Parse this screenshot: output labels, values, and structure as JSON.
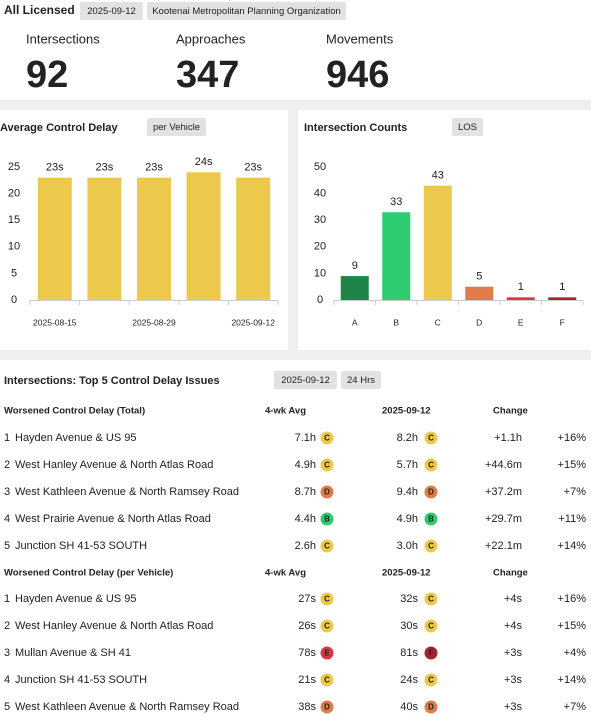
{
  "header": {
    "title": "All Licensed",
    "date": "2025-09-12",
    "org": "Kootenai Metropolitan Planning Organization"
  },
  "stats": [
    {
      "label": "Intersections",
      "value": 92
    },
    {
      "label": "Approaches",
      "value": 347
    },
    {
      "label": "Movements",
      "value": 946
    }
  ],
  "chart_data": [
    {
      "type": "bar",
      "title": "Average Control Delay",
      "badge": "per Vehicle",
      "categories": [
        "2025-08-15",
        null,
        "2025-08-29",
        null,
        "2025-09-12"
      ],
      "values": [
        23,
        23,
        23,
        24,
        23
      ],
      "value_labels": [
        "23s",
        "23s",
        "23s",
        "24s",
        "23s"
      ],
      "color": "#ecc94b",
      "ylim": [
        0,
        25
      ],
      "yticks": [
        0,
        5,
        10,
        15,
        20,
        25
      ]
    },
    {
      "type": "bar",
      "title": "Intersection Counts",
      "badge": "LOS",
      "categories": [
        "A",
        "B",
        "C",
        "D",
        "E",
        "F"
      ],
      "values": [
        9,
        33,
        43,
        5,
        1,
        1
      ],
      "colors": [
        "#1e8449",
        "#2ecc71",
        "#ecc94b",
        "#e07b4a",
        "#dc3545",
        "#a4262c"
      ],
      "ylim": [
        0,
        50
      ],
      "yticks": [
        0,
        10,
        20,
        30,
        40,
        50
      ]
    }
  ],
  "issues": {
    "title": "Intersections: Top 5 Control Delay Issues",
    "date": "2025-09-12",
    "period": "24 Hrs",
    "tables": [
      {
        "header": [
          "Worsened Control Delay (Total)",
          "4-wk Avg",
          "2025-09-12",
          "Change"
        ],
        "rows": [
          {
            "rank": 1,
            "name": "Hayden Avenue & US 95",
            "avg": "7.1h",
            "avg_los": "C",
            "current": "8.2h",
            "current_los": "C",
            "change": "+1.1h",
            "pct": "+16%"
          },
          {
            "rank": 2,
            "name": "West Hanley Avenue & North Atlas Road",
            "avg": "4.9h",
            "avg_los": "C",
            "current": "5.7h",
            "current_los": "C",
            "change": "+44.6m",
            "pct": "+15%"
          },
          {
            "rank": 3,
            "name": "West Kathleen Avenue & North Ramsey Road",
            "avg": "8.7h",
            "avg_los": "D",
            "current": "9.4h",
            "current_los": "D",
            "change": "+37.2m",
            "pct": "+7%"
          },
          {
            "rank": 4,
            "name": "West Prairie Avenue & North Atlas Road",
            "avg": "4.4h",
            "avg_los": "B",
            "current": "4.9h",
            "current_los": "B",
            "change": "+29.7m",
            "pct": "+11%"
          },
          {
            "rank": 5,
            "name": "Junction SH 41-53 SOUTH",
            "avg": "2.6h",
            "avg_los": "C",
            "current": "3.0h",
            "current_los": "C",
            "change": "+22.1m",
            "pct": "+14%"
          }
        ]
      },
      {
        "header": [
          "Worsened Control Delay (per Vehicle)",
          "4-wk Avg",
          "2025-09-12",
          "Change"
        ],
        "rows": [
          {
            "rank": 1,
            "name": "Hayden Avenue & US 95",
            "avg": "27s",
            "avg_los": "C",
            "current": "32s",
            "current_los": "C",
            "change": "+4s",
            "pct": "+16%"
          },
          {
            "rank": 2,
            "name": "West Hanley Avenue & North Atlas Road",
            "avg": "26s",
            "avg_los": "C",
            "current": "30s",
            "current_los": "C",
            "change": "+4s",
            "pct": "+15%"
          },
          {
            "rank": 3,
            "name": "Mullan Avenue & SH 41",
            "avg": "78s",
            "avg_los": "E",
            "current": "81s",
            "current_los": "F",
            "change": "+3s",
            "pct": "+4%"
          },
          {
            "rank": 4,
            "name": "Junction SH 41-53 SOUTH",
            "avg": "21s",
            "avg_los": "C",
            "current": "24s",
            "current_los": "C",
            "change": "+3s",
            "pct": "+14%"
          },
          {
            "rank": 5,
            "name": "West Kathleen Avenue & North Ramsey Road",
            "avg": "38s",
            "avg_los": "D",
            "current": "40s",
            "current_los": "D",
            "change": "+3s",
            "pct": "+7%"
          }
        ]
      }
    ]
  }
}
